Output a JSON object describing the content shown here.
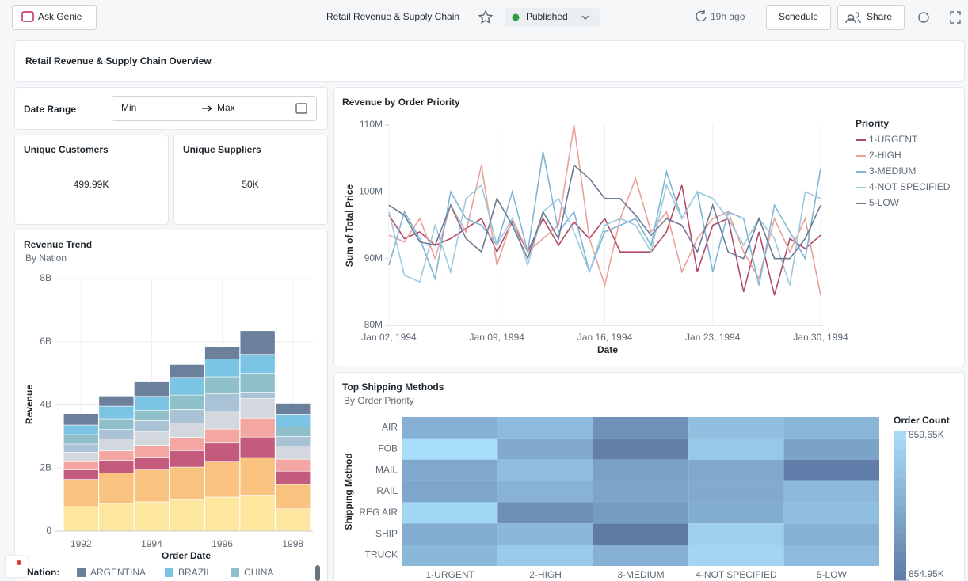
{
  "toolbar": {
    "ask_genie": "Ask Genie",
    "dashboard_name": "Retail Revenue & Supply Chain",
    "status": "Published",
    "refreshed": "19h ago",
    "schedule": "Schedule",
    "share": "Share"
  },
  "page_title": "Retail Revenue & Supply Chain Overview",
  "filter": {
    "label": "Date Range",
    "min_placeholder": "Min",
    "max_placeholder": "Max"
  },
  "counters": [
    {
      "title": "Unique Customers",
      "value": "499.99K"
    },
    {
      "title": "Unique Suppliers",
      "value": "50K"
    }
  ],
  "chart_data": [
    {
      "type": "stacked_bar",
      "title": "Revenue Trend",
      "subtitle": "By Nation",
      "x_label": "Order Date",
      "y_label": "Revenue",
      "legend_title": "Nation:",
      "categories": [
        "1992",
        null,
        "1994",
        null,
        "1996",
        null,
        "1998"
      ],
      "ylim": [
        0,
        8000000000
      ],
      "yticks": [
        0,
        {
          "value": 2000000000,
          "label": "2B"
        },
        {
          "value": 4000000000,
          "label": "4B"
        },
        {
          "value": 6000000000,
          "label": "6B"
        },
        {
          "value": 8000000000,
          "label": "8B"
        }
      ],
      "grid": true,
      "series": [
        {
          "name": "ARGENTINA",
          "color": "#6c7f9b",
          "values": [
            360000000,
            320000000,
            480000000,
            410000000,
            400000000,
            750000000,
            350000000
          ]
        },
        {
          "name": "BRAZIL",
          "color": "#7cc4e4",
          "values": [
            300000000,
            400000000,
            440000000,
            560000000,
            560000000,
            600000000,
            400000000
          ]
        },
        {
          "name": "CHINA",
          "color": "#8fbfc9",
          "values": [
            300000000,
            340000000,
            330000000,
            460000000,
            540000000,
            600000000,
            300000000
          ]
        },
        {
          "name": null,
          "color": "#a9c2d6",
          "values": [
            260000000,
            300000000,
            340000000,
            420000000,
            560000000,
            200000000,
            300000000
          ]
        },
        {
          "name": null,
          "color": "#d3d8df",
          "values": [
            300000000,
            380000000,
            440000000,
            460000000,
            560000000,
            620000000,
            420000000
          ]
        },
        {
          "name": null,
          "color": "#f4a7a2",
          "values": [
            260000000,
            300000000,
            380000000,
            420000000,
            440000000,
            600000000,
            380000000
          ]
        },
        {
          "name": null,
          "color": "#c45a7c",
          "values": [
            300000000,
            400000000,
            400000000,
            520000000,
            600000000,
            650000000,
            420000000
          ]
        },
        {
          "name": null,
          "color": "#f9c27e",
          "values": [
            860000000,
            960000000,
            1010000000,
            1040000000,
            1110000000,
            1190000000,
            770000000
          ]
        },
        {
          "name": null,
          "color": "#fde79f",
          "values": [
            780000000,
            880000000,
            930000000,
            990000000,
            1080000000,
            1140000000,
            710000000
          ]
        }
      ]
    },
    {
      "type": "line",
      "title": "Revenue by Order Priority",
      "x_label": "Date",
      "y_label": "Sum of Total Price",
      "legend_title": "Priority",
      "grid": true,
      "x": [
        "1994-01-02",
        "1994-01-03",
        "1994-01-04",
        "1994-01-05",
        "1994-01-06",
        "1994-01-07",
        "1994-01-08",
        "1994-01-09",
        "1994-01-10",
        "1994-01-11",
        "1994-01-12",
        "1994-01-13",
        "1994-01-14",
        "1994-01-15",
        "1994-01-16",
        "1994-01-17",
        "1994-01-18",
        "1994-01-19",
        "1994-01-20",
        "1994-01-21",
        "1994-01-22",
        "1994-01-23",
        "1994-01-24",
        "1994-01-25",
        "1994-01-26",
        "1994-01-27",
        "1994-01-28",
        "1994-01-29",
        "1994-01-30"
      ],
      "xlim": [
        "1994-01-02",
        "1994-01-30"
      ],
      "xticks": [
        {
          "value": "1994-01-02",
          "label": "Jan 02, 1994"
        },
        {
          "value": "1994-01-09",
          "label": "Jan 09, 1994"
        },
        {
          "value": "1994-01-16",
          "label": "Jan 16, 1994"
        },
        {
          "value": "1994-01-23",
          "label": "Jan 23, 1994"
        },
        {
          "value": "1994-01-30",
          "label": "Jan 30, 1994"
        }
      ],
      "ylim": [
        80000000,
        110000000
      ],
      "yticks": [
        {
          "value": 80000000,
          "label": "80M"
        },
        {
          "value": 90000000,
          "label": "90M"
        },
        {
          "value": 100000000,
          "label": "100M"
        },
        {
          "value": 110000000,
          "label": "110M"
        }
      ],
      "series": [
        {
          "name": "1-URGENT",
          "color": "#b04a66",
          "values": [
            96500000,
            93000000,
            94000000,
            92000000,
            93000000,
            94500000,
            96000000,
            91000000,
            95500000,
            91000000,
            96000000,
            92000000,
            95500000,
            93000000,
            96000000,
            91000000,
            91000000,
            91000000,
            94000000,
            101000000,
            88000000,
            95000000,
            96000000,
            85000000,
            94000000,
            84500000,
            93000000,
            91500000,
            93500000
          ]
        },
        {
          "name": "2-HIGH",
          "color": "#e9a19b",
          "values": [
            93500000,
            92500000,
            96000000,
            90000000,
            98000000,
            94000000,
            104000000,
            89000000,
            96000000,
            91000000,
            93000000,
            95000000,
            110000000,
            93000000,
            86000000,
            96000000,
            102000000,
            94000000,
            97000000,
            88000000,
            93000000,
            96000000,
            97000000,
            91000000,
            87000000,
            96000000,
            91000000,
            96000000,
            84500000
          ]
        },
        {
          "name": "3-MEDIUM",
          "color": "#7fb6d6",
          "values": [
            89000000,
            97000000,
            93000000,
            87000000,
            100000000,
            96000000,
            95000000,
            92000000,
            100000000,
            91000000,
            106000000,
            94000000,
            97000000,
            88000000,
            94000000,
            95000000,
            96000000,
            92000000,
            103000000,
            96000000,
            100000000,
            88000000,
            97000000,
            96000000,
            86000000,
            98000000,
            94000000,
            90000000,
            103500000
          ]
        },
        {
          "name": "4-NOT SPECIFIED",
          "color": "#9ecbdf",
          "values": [
            97000000,
            87500000,
            86500000,
            95000000,
            88000000,
            99000000,
            101000000,
            92000000,
            96000000,
            89000000,
            97000000,
            99000000,
            94000000,
            88000000,
            95000000,
            96000000,
            95000000,
            91000000,
            101000000,
            96000000,
            100000000,
            99000000,
            96000000,
            92000000,
            96000000,
            93000000,
            86000000,
            100000000,
            99000000
          ]
        },
        {
          "name": "5-LOW",
          "color": "#6b7a95",
          "values": [
            98000000,
            96500000,
            92500000,
            92000000,
            98000000,
            93000000,
            91000000,
            99000000,
            95000000,
            90000000,
            97000000,
            93000000,
            104000000,
            102000000,
            99000000,
            99000000,
            96500000,
            93500000,
            96000000,
            95000000,
            91000000,
            98000000,
            91000000,
            90000000,
            96000000,
            90000000,
            90000000,
            93000000,
            98000000
          ]
        }
      ]
    },
    {
      "type": "heatmap",
      "title": "Top Shipping Methods",
      "subtitle": "By Order Priority",
      "y_label": "Shipping Method",
      "x_categories": [
        "1-URGENT",
        "2-HIGH",
        "3-MEDIUM",
        "4-NOT SPECIFIED",
        "5-LOW"
      ],
      "y_categories": [
        "AIR",
        "FOB",
        "MAIL",
        "RAIL",
        "REG AIR",
        "SHIP",
        "TRUCK"
      ],
      "values": [
        [
          857500,
          858000,
          856000,
          858200,
          857700
        ],
        [
          859650,
          857200,
          855200,
          858600,
          856800
        ],
        [
          857100,
          858100,
          856700,
          857100,
          855100
        ],
        [
          857000,
          857600,
          856900,
          857200,
          857900
        ],
        [
          859300,
          855900,
          856500,
          857300,
          858200
        ],
        [
          857300,
          857800,
          854950,
          859000,
          857500
        ],
        [
          857800,
          858700,
          857500,
          859200,
          858000
        ]
      ],
      "colorbar": {
        "title": "Order Count",
        "zlim": [
          854950,
          859650
        ],
        "colors": [
          "#5e7ba6",
          "#a8defa"
        ],
        "ticks": [
          {
            "value": 859650,
            "label": "859.65K"
          },
          {
            "value": 854950,
            "label": "854.95K"
          }
        ]
      }
    }
  ]
}
